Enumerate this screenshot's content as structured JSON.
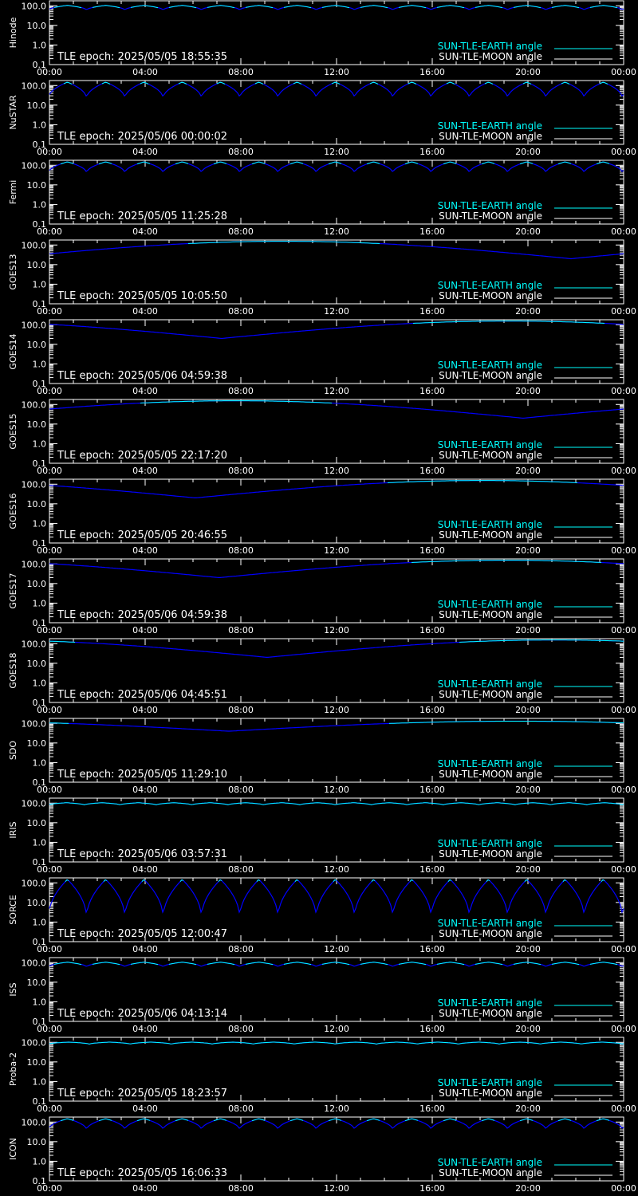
{
  "chart_data": [
    {
      "type": "line",
      "satellite": "Hinode",
      "epoch": "TLE epoch: 2025/05/05 18:55:35",
      "shape": "periodic",
      "base": 105,
      "min": 60,
      "count": 15,
      "phase": 0.03
    },
    {
      "type": "line",
      "satellite": "NuSTAR",
      "epoch": "TLE epoch: 2025/05/06 00:00:02",
      "shape": "periodic",
      "base": 150,
      "min": 22,
      "count": 15,
      "phase": 0.03
    },
    {
      "type": "line",
      "satellite": "Fermi",
      "epoch": "TLE epoch: 2025/05/05 11:25:28",
      "shape": "periodic",
      "base": 150,
      "min": 40,
      "count": 15,
      "phase": 0.03
    },
    {
      "type": "line",
      "satellite": "GOES13",
      "epoch": "TLE epoch: 2025/05/05 10:05:50",
      "shape": "slow",
      "base": 155,
      "min": 20,
      "min_hour": 21.8
    },
    {
      "type": "line",
      "satellite": "GOES14",
      "epoch": "TLE epoch: 2025/05/06 04:59:38",
      "shape": "slow",
      "base": 155,
      "min": 20,
      "min_hour": 7.2
    },
    {
      "type": "line",
      "satellite": "GOES15",
      "epoch": "TLE epoch: 2025/05/05 22:17:20",
      "shape": "slow",
      "base": 155,
      "min": 20,
      "min_hour": 19.8
    },
    {
      "type": "line",
      "satellite": "GOES16",
      "epoch": "TLE epoch: 2025/05/05 20:46:55",
      "shape": "slow",
      "base": 155,
      "min": 20,
      "min_hour": 6.1
    },
    {
      "type": "line",
      "satellite": "GOES17",
      "epoch": "TLE epoch: 2025/05/06 04:59:38",
      "shape": "slow",
      "base": 155,
      "min": 20,
      "min_hour": 7.1
    },
    {
      "type": "line",
      "satellite": "GOES18",
      "epoch": "TLE epoch: 2025/05/06 04:45:51",
      "shape": "slow",
      "base": 155,
      "min": 20,
      "min_hour": 9.1
    },
    {
      "type": "line",
      "satellite": "SDO",
      "epoch": "TLE epoch: 2025/05/05 11:29:10",
      "shape": "slow",
      "base": 130,
      "min": 40,
      "min_hour": 7.5
    },
    {
      "type": "line",
      "satellite": "IRIS",
      "epoch": "TLE epoch: 2025/05/06 03:57:31",
      "shape": "periodic",
      "base": 105,
      "min": 80,
      "count": 16,
      "phase": 0.03
    },
    {
      "type": "line",
      "satellite": "SORCE",
      "epoch": "TLE epoch: 2025/05/05 12:00:47",
      "shape": "periodic",
      "base": 150,
      "min": 1.6,
      "count": 15,
      "phase": 0.03
    },
    {
      "type": "line",
      "satellite": "ISS",
      "epoch": "TLE epoch: 2025/05/06 04:13:14",
      "shape": "periodic",
      "base": 105,
      "min": 60,
      "count": 15,
      "phase": 0.03
    },
    {
      "type": "line",
      "satellite": "Proba-2",
      "epoch": "TLE epoch: 2025/05/05 18:23:57",
      "shape": "periodic",
      "base": 103,
      "min": 80,
      "count": 14,
      "phase": 0.03
    },
    {
      "type": "line",
      "satellite": "ICON",
      "epoch": "TLE epoch: 2025/05/05 16:06:33",
      "shape": "periodic",
      "base": 150,
      "min": 40,
      "count": 15,
      "phase": 0.03
    }
  ],
  "axes": {
    "x_ticks": [
      "00:00",
      "04:00",
      "08:00",
      "12:00",
      "16:00",
      "20:00",
      "00:00"
    ],
    "x_range_hours": [
      0,
      24
    ],
    "y_ticks": [
      "100.0",
      "10.0",
      "1.0",
      "0.1"
    ],
    "y_log_range": [
      0.1,
      180
    ]
  },
  "legend": {
    "earth": "SUN-TLE-EARTH angle",
    "moon": "SUN-TLE-MOON angle"
  },
  "colors": {
    "background": "#000000",
    "frame": "#ffffff",
    "earth_line": "#00ffff",
    "moon_line": "#ffffff",
    "curve": "#0000ff"
  }
}
